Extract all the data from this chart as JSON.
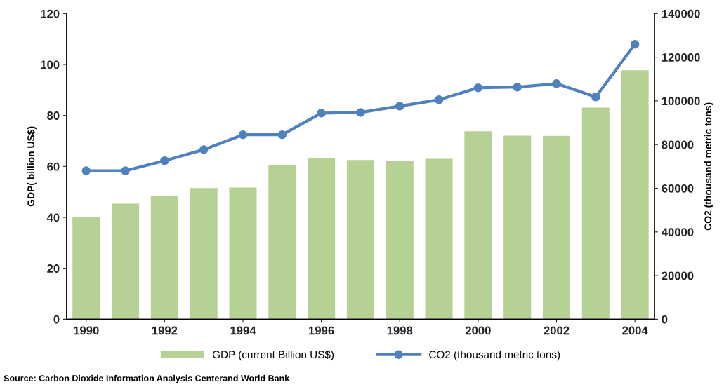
{
  "chart_data": {
    "type": "bar",
    "x": [
      1990,
      1991,
      1992,
      1993,
      1994,
      1995,
      1996,
      1997,
      1998,
      1999,
      2000,
      2001,
      2002,
      2003,
      2004
    ],
    "series": [
      {
        "name": "GDP (current Billion US$)",
        "color": "#b5d194",
        "values": [
          40,
          45.4,
          48.4,
          51.5,
          51.7,
          60.5,
          63.3,
          62.5,
          62,
          63,
          73.8,
          72.1,
          72,
          83.1,
          97.7
        ]
      },
      {
        "name": "CO2 (thousand metric tons)",
        "type": "line",
        "axis": "y2",
        "color": "#4f81bd",
        "values": [
          68000,
          68000,
          72600,
          77700,
          84500,
          84500,
          94400,
          94700,
          97600,
          100500,
          106000,
          106300,
          107900,
          101800,
          125900
        ]
      }
    ],
    "xlim": [
      1989.5,
      2004.5
    ],
    "xticks": [
      1990,
      1992,
      1994,
      1996,
      1998,
      2000,
      2002,
      2004
    ],
    "ylim": [
      0,
      120
    ],
    "yticks": [
      0,
      20,
      40,
      60,
      80,
      100,
      120
    ],
    "y2lim": [
      0,
      140000
    ],
    "y2ticks": [
      0,
      20000,
      40000,
      60000,
      80000,
      100000,
      120000,
      140000
    ],
    "ylabel": "GDP( billion US$)",
    "y2label": "CO2 (thousand metric tons)",
    "annotations": [
      "Source: Carbon Dioxide Information Analysis Centerand World Bank"
    ],
    "legend": "bottom",
    "marker": "circle",
    "line_style": "solid",
    "grid": false
  }
}
